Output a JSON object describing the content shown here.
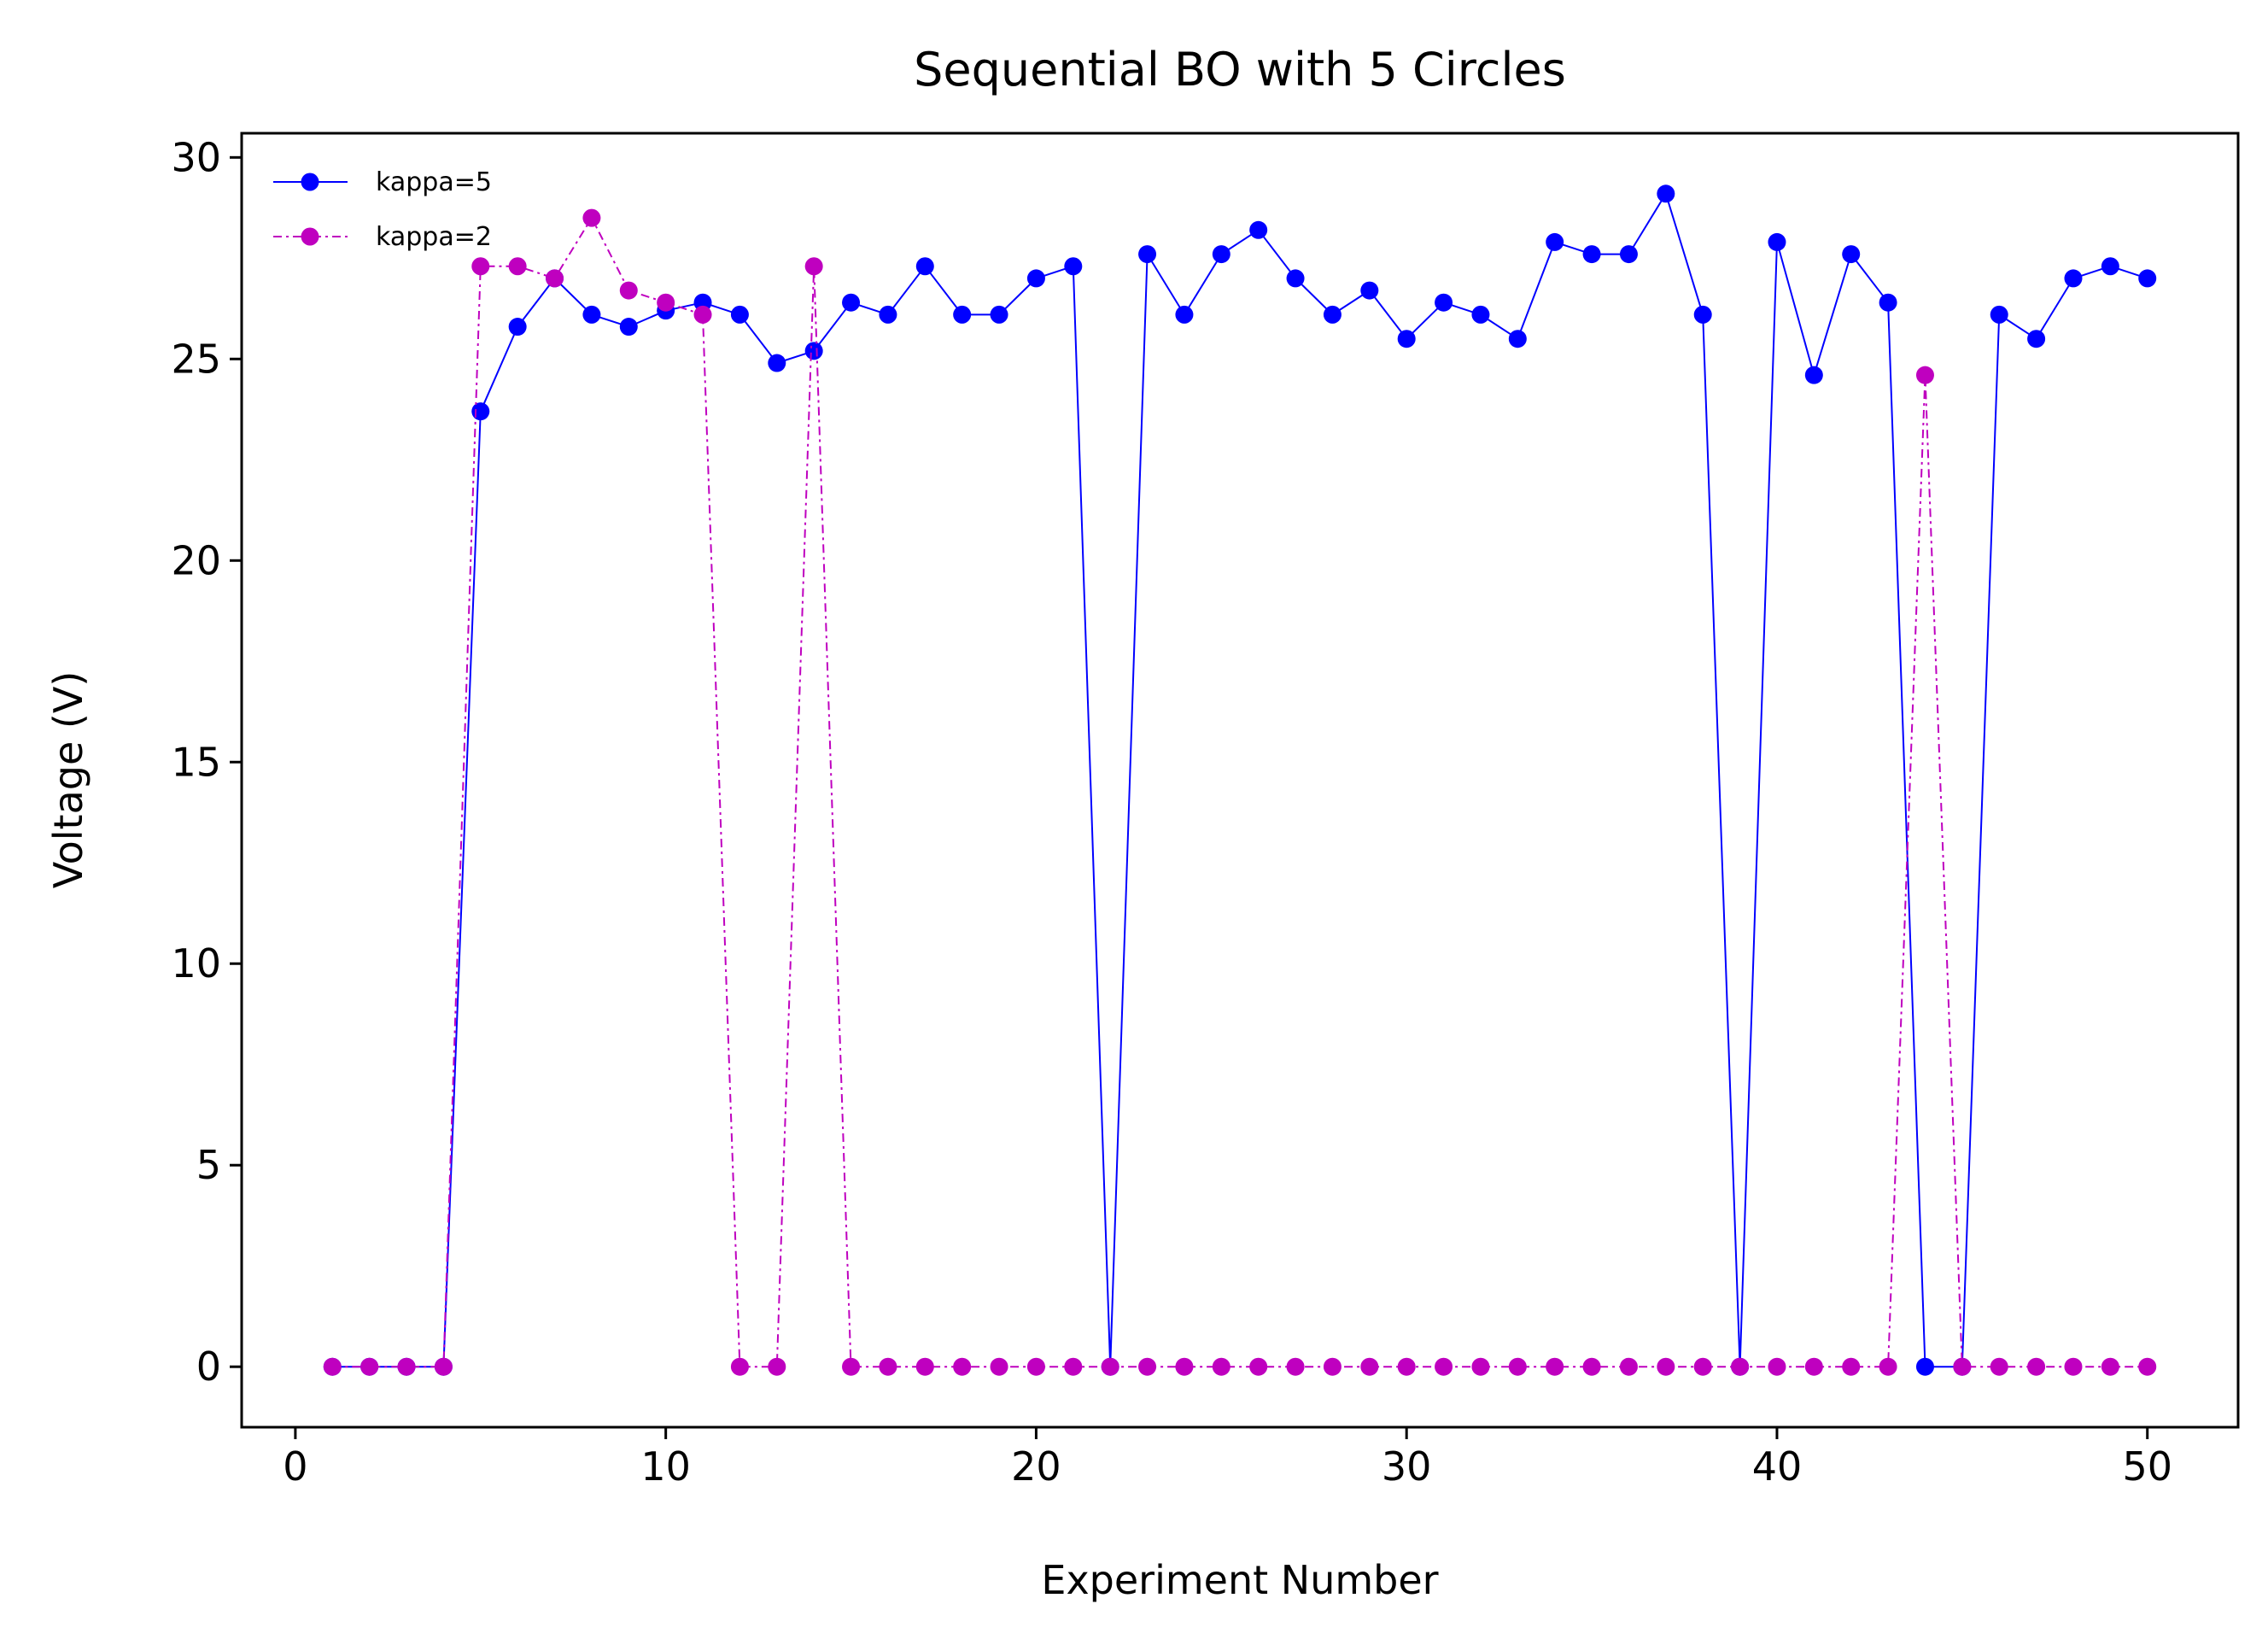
{
  "chart_data": {
    "type": "line",
    "title": "Sequential BO with 5 Circles",
    "xlabel": "Experiment Number",
    "ylabel": "Voltage (V)",
    "xlim": [
      -1.45,
      52.45
    ],
    "ylim": [
      -1.5,
      30.6
    ],
    "xticks": [
      0,
      10,
      20,
      30,
      40,
      50
    ],
    "yticks": [
      0,
      5,
      10,
      15,
      20,
      25,
      30
    ],
    "grid": false,
    "legend_position": "upper left",
    "x": [
      1,
      2,
      3,
      4,
      5,
      6,
      7,
      8,
      9,
      10,
      11,
      12,
      13,
      14,
      15,
      16,
      17,
      18,
      19,
      20,
      21,
      22,
      23,
      24,
      25,
      26,
      27,
      28,
      29,
      30,
      31,
      32,
      33,
      34,
      35,
      36,
      37,
      38,
      39,
      40,
      41,
      42,
      43,
      44,
      45,
      46,
      47,
      48,
      49,
      50
    ],
    "series": [
      {
        "name": "kappa=5",
        "color": "#0000ff",
        "line_style": "solid",
        "marker": "circle",
        "values": [
          0,
          0,
          0,
          0,
          23.7,
          25.8,
          27.0,
          26.1,
          25.8,
          26.2,
          26.4,
          26.1,
          24.9,
          25.2,
          26.4,
          26.1,
          27.3,
          26.1,
          26.1,
          27.0,
          27.3,
          0,
          27.6,
          26.1,
          27.6,
          28.2,
          27.0,
          26.1,
          26.7,
          25.5,
          26.4,
          26.1,
          25.5,
          27.9,
          27.6,
          27.6,
          29.1,
          26.1,
          0,
          27.9,
          24.6,
          27.6,
          26.4,
          0,
          0,
          26.1,
          25.5,
          27.0,
          27.3,
          27.0
        ]
      },
      {
        "name": "kappa=2",
        "color": "#bf00bf",
        "line_style": "dashdot",
        "marker": "circle",
        "values": [
          0,
          0,
          0,
          0,
          27.3,
          27.3,
          27.0,
          28.5,
          26.7,
          26.4,
          26.1,
          0,
          0,
          27.3,
          0,
          0,
          0,
          0,
          0,
          0,
          0,
          0,
          0,
          0,
          0,
          0,
          0,
          0,
          0,
          0,
          0,
          0,
          0,
          0,
          0,
          0,
          0,
          0,
          0,
          0,
          0,
          0,
          0,
          24.6,
          0,
          0,
          0,
          0,
          0,
          0
        ]
      }
    ]
  }
}
